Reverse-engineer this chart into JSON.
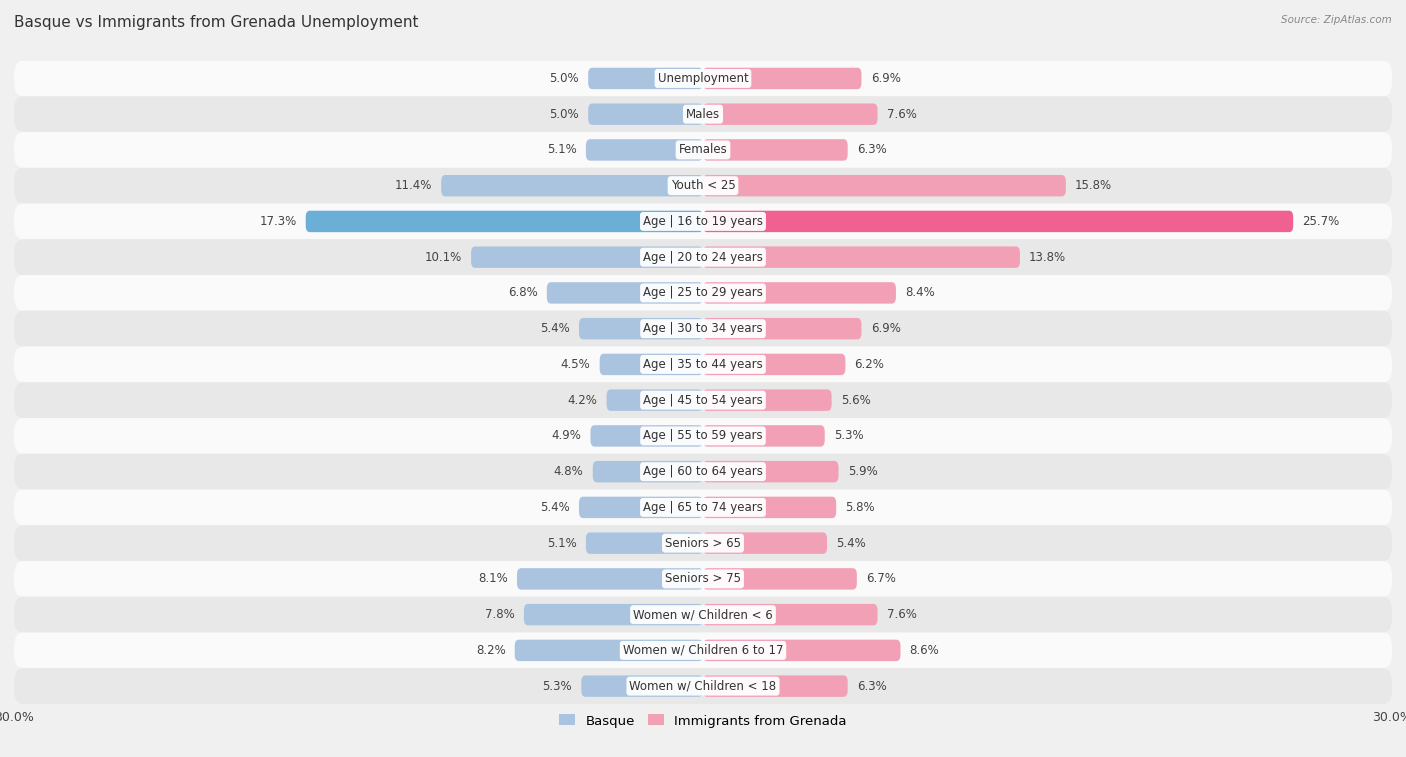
{
  "title": "Basque vs Immigrants from Grenada Unemployment",
  "source": "Source: ZipAtlas.com",
  "categories": [
    "Unemployment",
    "Males",
    "Females",
    "Youth < 25",
    "Age | 16 to 19 years",
    "Age | 20 to 24 years",
    "Age | 25 to 29 years",
    "Age | 30 to 34 years",
    "Age | 35 to 44 years",
    "Age | 45 to 54 years",
    "Age | 55 to 59 years",
    "Age | 60 to 64 years",
    "Age | 65 to 74 years",
    "Seniors > 65",
    "Seniors > 75",
    "Women w/ Children < 6",
    "Women w/ Children 6 to 17",
    "Women w/ Children < 18"
  ],
  "basque_values": [
    5.0,
    5.0,
    5.1,
    11.4,
    17.3,
    10.1,
    6.8,
    5.4,
    4.5,
    4.2,
    4.9,
    4.8,
    5.4,
    5.1,
    8.1,
    7.8,
    8.2,
    5.3
  ],
  "grenada_values": [
    6.9,
    7.6,
    6.3,
    15.8,
    25.7,
    13.8,
    8.4,
    6.9,
    6.2,
    5.6,
    5.3,
    5.9,
    5.8,
    5.4,
    6.7,
    7.6,
    8.6,
    6.3
  ],
  "basque_color": "#aac4e0",
  "grenada_color": "#f2a0b5",
  "basque_highlight_color": "#6baed6",
  "grenada_highlight_color": "#f06090",
  "axis_max": 30.0,
  "bg_color": "#f0f0f0",
  "row_color_light": "#fafafa",
  "row_color_dark": "#e8e8e8",
  "bar_height": 0.6,
  "title_fontsize": 11,
  "label_fontsize": 8.5,
  "tick_fontsize": 9,
  "legend_fontsize": 9.5
}
